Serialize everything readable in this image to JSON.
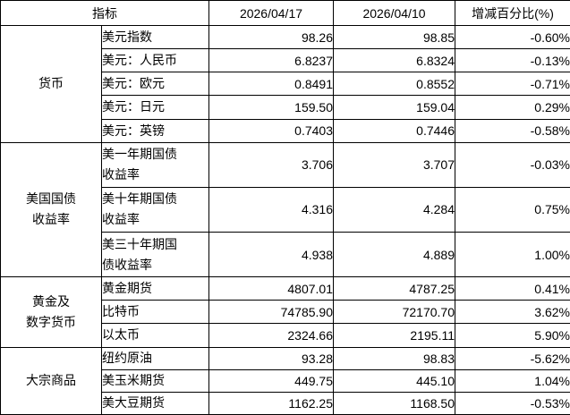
{
  "colors": {
    "border": "#000000",
    "text": "#000000",
    "background": "#ffffff"
  },
  "table": {
    "header": {
      "indicator_label": "指标",
      "date1": "2026/04/17",
      "date2": "2026/04/10",
      "change_label": "增减百分比(%)"
    },
    "groups": [
      {
        "category": "货币",
        "rows": [
          {
            "label": "美元指数",
            "v1": "98.26",
            "v2": "98.85",
            "change": "-0.60%"
          },
          {
            "label": "美元：人民币",
            "v1": "6.8237",
            "v2": "6.8324",
            "change": "-0.13%"
          },
          {
            "label": "美元：欧元",
            "v1": "0.8491",
            "v2": "0.8552",
            "change": "-0.71%"
          },
          {
            "label": "美元：日元",
            "v1": "159.50",
            "v2": "159.04",
            "change": "0.29%"
          },
          {
            "label": "美元：英镑",
            "v1": "0.7403",
            "v2": "0.7446",
            "change": "-0.58%"
          }
        ]
      },
      {
        "category": "美国国债\n收益率",
        "rows": [
          {
            "label": "美一年期国债\n收益率",
            "v1": "3.706",
            "v2": "3.707",
            "change": "-0.03%"
          },
          {
            "label": "美十年期国债\n收益率",
            "v1": "4.316",
            "v2": "4.284",
            "change": "0.75%"
          },
          {
            "label": "美三十年期国\n债收益率",
            "v1": "4.938",
            "v2": "4.889",
            "change": "1.00%"
          }
        ]
      },
      {
        "category": "黄金及\n数字货币",
        "rows": [
          {
            "label": "黄金期货",
            "v1": "4807.01",
            "v2": "4787.25",
            "change": "0.41%"
          },
          {
            "label": "比特币",
            "v1": "74785.90",
            "v2": "72170.70",
            "change": "3.62%"
          },
          {
            "label": "以太币",
            "v1": "2324.66",
            "v2": "2195.11",
            "change": "5.90%"
          }
        ]
      },
      {
        "category": "大宗商品",
        "rows": [
          {
            "label": "纽约原油",
            "v1": "93.28",
            "v2": "98.83",
            "change": "-5.62%"
          },
          {
            "label": "美玉米期货",
            "v1": "449.75",
            "v2": "445.10",
            "change": "1.04%"
          },
          {
            "label": "美大豆期货",
            "v1": "1162.25",
            "v2": "1168.50",
            "change": "-0.53%"
          }
        ]
      }
    ]
  }
}
